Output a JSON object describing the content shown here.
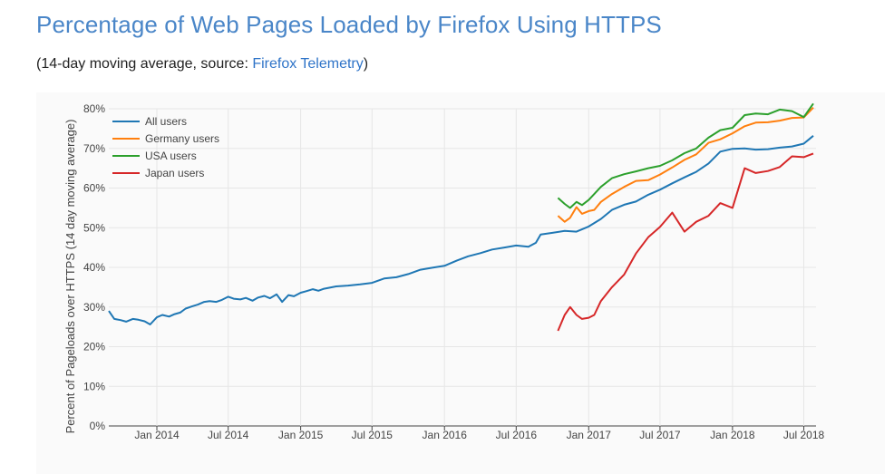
{
  "header": {
    "title": "Percentage of Web Pages Loaded by Firefox Using HTTPS",
    "subtitle_prefix": "(14-day moving average, source: ",
    "subtitle_link": "Firefox Telemetry",
    "subtitle_suffix": ")"
  },
  "colors": {
    "all": "#1f77b4",
    "germany": "#ff7f0e",
    "usa": "#2ca02c",
    "japan": "#d62728",
    "grid": "#e6e6e6"
  },
  "chart_data": {
    "type": "line",
    "title": "Percentage of Web Pages Loaded by Firefox Using HTTPS",
    "ylabel": "Percent of Pageloads over HTTPS (14 day moving average)",
    "xlabel": "",
    "ylim": [
      0,
      80
    ],
    "xlim": [
      "2013-09-01",
      "2018-08-01"
    ],
    "grid": true,
    "legend_position": "top-left",
    "y_ticks": [
      {
        "value": 0,
        "label": "0%"
      },
      {
        "value": 10,
        "label": "10%"
      },
      {
        "value": 20,
        "label": "20%"
      },
      {
        "value": 30,
        "label": "30%"
      },
      {
        "value": 40,
        "label": "40%"
      },
      {
        "value": 50,
        "label": "50%"
      },
      {
        "value": 60,
        "label": "60%"
      },
      {
        "value": 70,
        "label": "70%"
      },
      {
        "value": 80,
        "label": "80%"
      }
    ],
    "x_ticks": [
      {
        "value": "2014-01-01",
        "label": "Jan 2014"
      },
      {
        "value": "2014-07-01",
        "label": "Jul 2014"
      },
      {
        "value": "2015-01-01",
        "label": "Jan 2015"
      },
      {
        "value": "2015-07-01",
        "label": "Jul 2015"
      },
      {
        "value": "2016-01-01",
        "label": "Jan 2016"
      },
      {
        "value": "2016-07-01",
        "label": "Jul 2016"
      },
      {
        "value": "2017-01-01",
        "label": "Jan 2017"
      },
      {
        "value": "2017-07-01",
        "label": "Jul 2017"
      },
      {
        "value": "2018-01-01",
        "label": "Jan 2018"
      },
      {
        "value": "2018-07-01",
        "label": "Jul 2018"
      }
    ],
    "series": [
      {
        "name": "All users",
        "color_key": "all",
        "x": [
          "2013-09-01",
          "2013-09-15",
          "2013-10-01",
          "2013-10-15",
          "2013-11-01",
          "2013-11-15",
          "2013-12-01",
          "2013-12-15",
          "2014-01-01",
          "2014-01-15",
          "2014-02-01",
          "2014-02-15",
          "2014-03-01",
          "2014-03-15",
          "2014-04-01",
          "2014-04-15",
          "2014-05-01",
          "2014-05-15",
          "2014-06-01",
          "2014-06-15",
          "2014-07-01",
          "2014-07-15",
          "2014-08-01",
          "2014-08-15",
          "2014-09-01",
          "2014-09-15",
          "2014-10-01",
          "2014-10-15",
          "2014-11-01",
          "2014-11-15",
          "2014-12-01",
          "2014-12-15",
          "2015-01-01",
          "2015-01-15",
          "2015-02-01",
          "2015-02-15",
          "2015-03-01",
          "2015-04-01",
          "2015-05-01",
          "2015-06-01",
          "2015-07-01",
          "2015-08-01",
          "2015-09-01",
          "2015-10-01",
          "2015-11-01",
          "2015-12-01",
          "2016-01-01",
          "2016-02-01",
          "2016-03-01",
          "2016-04-01",
          "2016-05-01",
          "2016-06-01",
          "2016-07-01",
          "2016-08-01",
          "2016-08-20",
          "2016-09-01",
          "2016-10-01",
          "2016-11-01",
          "2016-12-01",
          "2017-01-01",
          "2017-02-01",
          "2017-03-01",
          "2017-04-01",
          "2017-05-01",
          "2017-06-01",
          "2017-07-01",
          "2017-08-01",
          "2017-09-01",
          "2017-10-01",
          "2017-11-01",
          "2017-12-01",
          "2018-01-01",
          "2018-02-01",
          "2018-03-01",
          "2018-04-01",
          "2018-05-01",
          "2018-06-01",
          "2018-07-01",
          "2018-07-25"
        ],
        "y": [
          29,
          27,
          26.7,
          26.3,
          27,
          26.8,
          26.4,
          25.6,
          27.4,
          28,
          27.6,
          28.2,
          28.6,
          29.6,
          30.2,
          30.6,
          31.3,
          31.5,
          31.3,
          31.8,
          32.6,
          32.1,
          31.9,
          32.3,
          31.6,
          32.4,
          32.8,
          32.2,
          33.2,
          31.3,
          33,
          32.7,
          33.6,
          34,
          34.5,
          34.1,
          34.6,
          35.2,
          35.4,
          35.7,
          36.1,
          37.2,
          37.5,
          38.3,
          39.4,
          39.9,
          40.4,
          41.7,
          42.8,
          43.6,
          44.5,
          45,
          45.5,
          45.2,
          46.2,
          48.3,
          48.7,
          49.2,
          49,
          50.3,
          52.2,
          54.5,
          55.8,
          56.6,
          58.3,
          59.6,
          61.2,
          62.7,
          64.1,
          66.2,
          69.2,
          69.9,
          70,
          69.7,
          69.8,
          70.2,
          70.5,
          71.2,
          73.2
        ]
      },
      {
        "name": "Germany users",
        "color_key": "germany",
        "x": [
          "2016-10-15",
          "2016-11-01",
          "2016-11-15",
          "2016-12-01",
          "2016-12-15",
          "2017-01-01",
          "2017-01-15",
          "2017-02-01",
          "2017-03-01",
          "2017-04-01",
          "2017-05-01",
          "2017-06-01",
          "2017-07-01",
          "2017-08-01",
          "2017-09-01",
          "2017-10-01",
          "2017-11-01",
          "2017-12-01",
          "2018-01-01",
          "2018-02-01",
          "2018-03-01",
          "2018-04-01",
          "2018-05-01",
          "2018-06-01",
          "2018-07-01",
          "2018-07-25"
        ],
        "y": [
          53,
          51.5,
          52.5,
          55.2,
          53.5,
          54.2,
          54.5,
          56.5,
          58.5,
          60.3,
          61.8,
          62,
          63.4,
          65.2,
          67.1,
          68.5,
          71.4,
          72.3,
          73.8,
          75.6,
          76.5,
          76.6,
          77,
          77.7,
          77.8,
          80.3
        ]
      },
      {
        "name": "USA users",
        "color_key": "usa",
        "x": [
          "2016-10-15",
          "2016-11-01",
          "2016-11-15",
          "2016-12-01",
          "2016-12-15",
          "2017-01-01",
          "2017-01-15",
          "2017-02-01",
          "2017-03-01",
          "2017-04-01",
          "2017-05-01",
          "2017-06-01",
          "2017-07-01",
          "2017-08-01",
          "2017-09-01",
          "2017-10-01",
          "2017-11-01",
          "2017-12-01",
          "2018-01-01",
          "2018-02-01",
          "2018-03-01",
          "2018-04-01",
          "2018-05-01",
          "2018-06-01",
          "2018-07-01",
          "2018-07-25"
        ],
        "y": [
          57.5,
          56,
          55,
          56.5,
          55.7,
          57,
          58.5,
          60.3,
          62.5,
          63.5,
          64.2,
          65,
          65.6,
          67,
          68.8,
          70,
          72.7,
          74.6,
          75.2,
          78.4,
          78.8,
          78.6,
          79.8,
          79.4,
          77.9,
          81.3
        ]
      },
      {
        "name": "Japan users",
        "color_key": "japan",
        "x": [
          "2016-10-15",
          "2016-11-01",
          "2016-11-15",
          "2016-12-01",
          "2016-12-15",
          "2017-01-01",
          "2017-01-15",
          "2017-02-01",
          "2017-03-01",
          "2017-04-01",
          "2017-05-01",
          "2017-06-01",
          "2017-07-01",
          "2017-08-01",
          "2017-09-01",
          "2017-10-01",
          "2017-11-01",
          "2017-12-01",
          "2018-01-01",
          "2018-02-01",
          "2018-03-01",
          "2018-04-01",
          "2018-05-01",
          "2018-06-01",
          "2018-07-01",
          "2018-07-25"
        ],
        "y": [
          24,
          28,
          30,
          28,
          27,
          27.3,
          28,
          31.5,
          35,
          38.2,
          43.5,
          47.6,
          50.2,
          53.8,
          49,
          51.5,
          53,
          56.2,
          55,
          65,
          63.8,
          64.3,
          65.3,
          68,
          67.8,
          68.7
        ]
      }
    ]
  }
}
